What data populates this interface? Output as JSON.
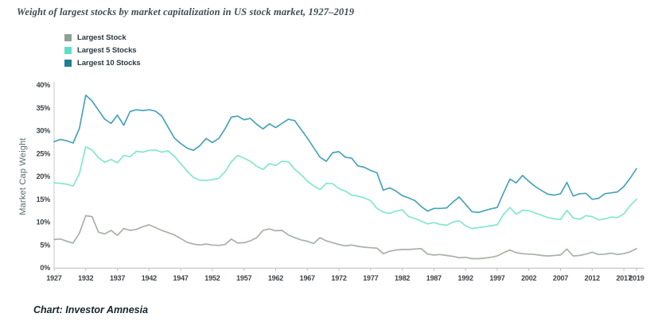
{
  "title": "Weight of largest stocks by market capitalization in US stock market, 1927–2019",
  "footer": "Chart: Investor Amnesia",
  "legend": [
    {
      "label": "Largest Stock",
      "color": "#90a097"
    },
    {
      "label": "Largest 5 Stocks",
      "color": "#5ce0c3"
    },
    {
      "label": "Largest 10 Stocks",
      "color": "#1e7e94"
    }
  ],
  "chart_data": {
    "type": "line",
    "title": "Weight of largest stocks by market capitalization in US stock market, 1927–2019",
    "xlabel": "",
    "ylabel": "Market Cap Weight",
    "ylim": [
      0,
      40
    ],
    "grid": false,
    "legend_position": "top-left",
    "y_ticks": [
      0,
      5,
      10,
      15,
      20,
      25,
      30,
      35,
      40
    ],
    "y_tick_suffix": "%",
    "x_tick_labels": [
      1927,
      1932,
      1937,
      1942,
      1947,
      1952,
      1957,
      1962,
      1967,
      1972,
      1977,
      1982,
      1987,
      1992,
      1997,
      2002,
      2007,
      2012,
      2017,
      2019
    ],
    "x": [
      1927,
      1928,
      1929,
      1930,
      1931,
      1932,
      1933,
      1934,
      1935,
      1936,
      1937,
      1938,
      1939,
      1940,
      1941,
      1942,
      1943,
      1944,
      1945,
      1946,
      1947,
      1948,
      1949,
      1950,
      1951,
      1952,
      1953,
      1954,
      1955,
      1956,
      1957,
      1958,
      1959,
      1960,
      1961,
      1962,
      1963,
      1964,
      1965,
      1966,
      1967,
      1968,
      1969,
      1970,
      1971,
      1972,
      1973,
      1974,
      1975,
      1976,
      1977,
      1978,
      1979,
      1980,
      1981,
      1982,
      1983,
      1984,
      1985,
      1986,
      1987,
      1988,
      1989,
      1990,
      1991,
      1992,
      1993,
      1994,
      1995,
      1996,
      1997,
      1998,
      1999,
      2000,
      2001,
      2002,
      2003,
      2004,
      2005,
      2006,
      2007,
      2008,
      2009,
      2010,
      2011,
      2012,
      2013,
      2014,
      2015,
      2016,
      2017,
      2018,
      2019
    ],
    "series": [
      {
        "name": "Largest Stock",
        "color": "#a8b1a8",
        "values": [
          6.2,
          6.3,
          5.8,
          5.4,
          7.6,
          11.4,
          11.2,
          7.8,
          7.4,
          8.2,
          7.1,
          8.6,
          8.2,
          8.4,
          9.0,
          9.4,
          8.8,
          8.2,
          7.7,
          7.2,
          6.4,
          5.6,
          5.2,
          5.0,
          5.2,
          5.0,
          4.9,
          5.1,
          6.3,
          5.4,
          5.5,
          5.9,
          6.6,
          8.2,
          8.5,
          8.1,
          8.2,
          7.2,
          6.6,
          6.1,
          5.8,
          5.3,
          6.6,
          5.9,
          5.5,
          5.1,
          4.8,
          5.0,
          4.7,
          4.5,
          4.4,
          4.3,
          3.1,
          3.6,
          3.9,
          4.0,
          4.0,
          4.1,
          4.2,
          3.0,
          2.8,
          2.9,
          2.7,
          2.5,
          2.2,
          2.3,
          2.0,
          2.0,
          2.1,
          2.3,
          2.6,
          3.3,
          3.9,
          3.3,
          3.1,
          3.0,
          2.9,
          2.7,
          2.6,
          2.7,
          2.8,
          4.1,
          2.6,
          2.7,
          3.0,
          3.4,
          2.9,
          3.0,
          3.2,
          2.9,
          3.1,
          3.5,
          4.2
        ]
      },
      {
        "name": "Largest 5 Stocks",
        "color": "#82e7ce",
        "values": [
          18.6,
          18.5,
          18.3,
          17.9,
          20.6,
          26.5,
          25.8,
          24.1,
          23.1,
          23.7,
          23.0,
          24.6,
          24.3,
          25.5,
          25.3,
          25.7,
          25.8,
          25.3,
          25.6,
          24.4,
          22.8,
          21.2,
          19.8,
          19.2,
          19.1,
          19.3,
          19.6,
          21.0,
          23.2,
          24.6,
          24.0,
          23.3,
          22.2,
          21.5,
          22.8,
          22.4,
          23.3,
          23.2,
          21.6,
          20.4,
          19.0,
          17.9,
          17.1,
          18.5,
          18.4,
          17.3,
          16.8,
          15.9,
          15.7,
          15.3,
          14.7,
          13.0,
          12.2,
          11.9,
          12.4,
          12.7,
          11.2,
          10.8,
          10.2,
          9.6,
          9.9,
          9.5,
          9.3,
          10.0,
          10.3,
          9.2,
          8.6,
          8.8,
          9.0,
          9.2,
          9.4,
          11.7,
          13.2,
          11.7,
          12.6,
          12.5,
          12.0,
          11.5,
          11.0,
          10.7,
          10.6,
          12.6,
          10.9,
          10.6,
          11.4,
          11.2,
          10.5,
          10.7,
          11.1,
          11.0,
          11.8,
          13.6,
          15.0
        ]
      },
      {
        "name": "Largest 10 Stocks",
        "color": "#48a4bb",
        "values": [
          27.6,
          28.1,
          27.8,
          27.3,
          30.5,
          37.8,
          36.5,
          34.5,
          32.5,
          31.6,
          33.4,
          31.2,
          34.2,
          34.6,
          34.4,
          34.6,
          34.3,
          33.2,
          30.8,
          28.4,
          27.2,
          26.2,
          25.7,
          26.7,
          28.3,
          27.4,
          28.3,
          30.4,
          33.0,
          33.2,
          32.4,
          32.7,
          31.4,
          30.4,
          31.5,
          30.7,
          31.6,
          32.5,
          32.2,
          30.3,
          28.4,
          26.3,
          24.2,
          23.3,
          25.2,
          25.4,
          24.2,
          24.0,
          22.3,
          22.0,
          21.3,
          20.8,
          17.0,
          17.5,
          16.8,
          15.8,
          15.3,
          14.7,
          13.4,
          12.4,
          13.0,
          13.0,
          13.1,
          14.4,
          15.5,
          13.9,
          12.3,
          12.1,
          12.5,
          12.9,
          13.2,
          16.4,
          19.4,
          18.6,
          20.2,
          18.9,
          17.8,
          16.9,
          16.1,
          15.9,
          16.2,
          18.7,
          15.7,
          16.2,
          16.3,
          15.0,
          15.2,
          16.2,
          16.4,
          16.6,
          17.8,
          19.6,
          21.7
        ]
      }
    ]
  }
}
